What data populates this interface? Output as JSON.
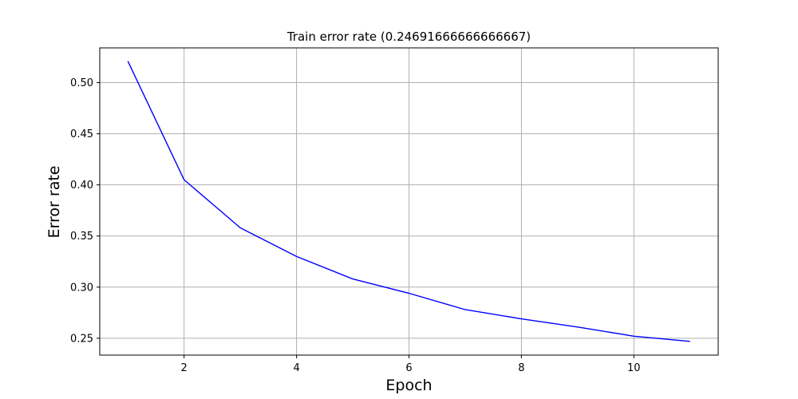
{
  "chart_data": {
    "type": "line",
    "title": "Train error rate (0.24691666666666667)",
    "xlabel": "Epoch",
    "ylabel": "Error rate",
    "xlim": [
      0.5,
      11.5
    ],
    "ylim": [
      0.2335,
      0.534
    ],
    "xticks": [
      2,
      4,
      6,
      8,
      10
    ],
    "yticks": [
      0.25,
      0.3,
      0.35,
      0.4,
      0.45,
      0.5
    ],
    "xtick_labels": [
      "2",
      "4",
      "6",
      "8",
      "10"
    ],
    "ytick_labels": [
      "0.25",
      "0.30",
      "0.35",
      "0.40",
      "0.45",
      "0.50"
    ],
    "grid": true,
    "line_color": "#0000ff",
    "grid_color": "#b0b0b0",
    "series": [
      {
        "x": [
          1,
          2,
          3,
          4,
          5,
          6,
          7,
          8,
          9,
          10,
          11
        ],
        "values": [
          0.521,
          0.405,
          0.358,
          0.33,
          0.308,
          0.294,
          0.278,
          0.269,
          0.261,
          0.252,
          0.2469
        ]
      }
    ]
  }
}
